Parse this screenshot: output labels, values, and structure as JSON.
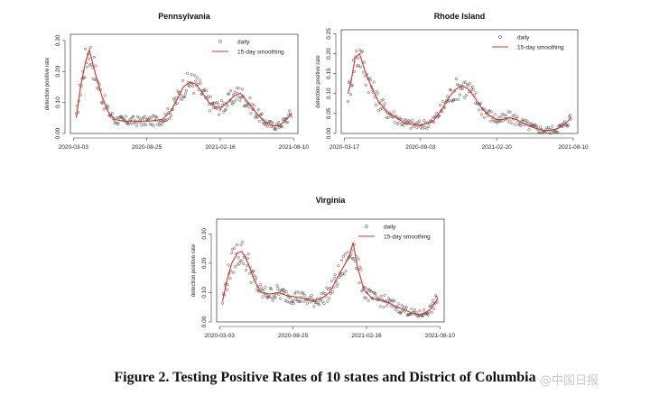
{
  "chart_data": [
    {
      "type": "scatter",
      "title": "Pennsylvania",
      "xlabel": "",
      "ylabel": "detection positive rate",
      "x_ticks": [
        "2020-03-03",
        "2020-08-25",
        "2021-02-16",
        "2021-08-10"
      ],
      "ylim": [
        0,
        0.32
      ],
      "y_ticks": [
        "0.00",
        "0.10",
        "0.20",
        "0.30"
      ],
      "y_tick_values": [
        0,
        0.1,
        0.2,
        0.3
      ],
      "legend": {
        "position": "top-right",
        "entries": [
          "daily",
          "15-day smoothing"
        ]
      },
      "series": [
        {
          "name": "daily",
          "style": "points",
          "color": "#000000"
        },
        {
          "name": "15-day smoothing",
          "style": "line",
          "color": "#e03020",
          "x": [
            "2020-03-10",
            "2020-03-20",
            "2020-04-01",
            "2020-04-10",
            "2020-04-25",
            "2020-05-10",
            "2020-05-25",
            "2020-06-10",
            "2020-07-01",
            "2020-08-01",
            "2020-09-01",
            "2020-10-01",
            "2020-10-20",
            "2020-11-05",
            "2020-11-20",
            "2020-12-05",
            "2020-12-20",
            "2021-01-05",
            "2021-01-20",
            "2021-02-05",
            "2021-02-20",
            "2021-03-05",
            "2021-03-20",
            "2021-04-05",
            "2021-04-20",
            "2021-05-05",
            "2021-05-20",
            "2021-06-05",
            "2021-06-20",
            "2021-07-05",
            "2021-07-20",
            "2021-08-05"
          ],
          "y": [
            0.05,
            0.15,
            0.23,
            0.27,
            0.19,
            0.12,
            0.07,
            0.045,
            0.04,
            0.04,
            0.04,
            0.045,
            0.07,
            0.11,
            0.15,
            0.165,
            0.16,
            0.13,
            0.1,
            0.085,
            0.085,
            0.1,
            0.12,
            0.13,
            0.105,
            0.08,
            0.055,
            0.035,
            0.025,
            0.025,
            0.04,
            0.065
          ]
        }
      ]
    },
    {
      "type": "scatter",
      "title": "Rhode Island",
      "xlabel": "",
      "ylabel": "detection positive rate",
      "x_ticks": [
        "2020-03-17",
        "2020-09-03",
        "2021-02-20",
        "2021-08-10"
      ],
      "ylim": [
        0,
        0.26
      ],
      "y_ticks": [
        "0.00",
        "0.05",
        "0.10",
        "0.15",
        "0.20",
        "0.25"
      ],
      "y_tick_values": [
        0,
        0.05,
        0.1,
        0.15,
        0.2,
        0.25
      ],
      "legend": {
        "position": "top-right",
        "entries": [
          "daily",
          "15-day smoothing"
        ]
      },
      "series": [
        {
          "name": "daily",
          "style": "points",
          "color": "#000000"
        },
        {
          "name": "15-day smoothing",
          "style": "line",
          "color": "#e03020",
          "x": [
            "2020-03-25",
            "2020-04-01",
            "2020-04-10",
            "2020-04-20",
            "2020-05-01",
            "2020-05-15",
            "2020-06-01",
            "2020-06-20",
            "2020-07-10",
            "2020-08-01",
            "2020-09-01",
            "2020-10-01",
            "2020-10-20",
            "2020-11-05",
            "2020-11-20",
            "2020-12-05",
            "2020-12-20",
            "2021-01-05",
            "2021-01-20",
            "2021-02-05",
            "2021-02-20",
            "2021-03-05",
            "2021-03-20",
            "2021-04-05",
            "2021-04-20",
            "2021-05-05",
            "2021-05-20",
            "2021-06-05",
            "2021-06-20",
            "2021-07-05",
            "2021-07-20",
            "2021-08-05"
          ],
          "y": [
            0.1,
            0.13,
            0.19,
            0.2,
            0.16,
            0.12,
            0.08,
            0.055,
            0.04,
            0.025,
            0.02,
            0.03,
            0.06,
            0.09,
            0.11,
            0.12,
            0.11,
            0.085,
            0.06,
            0.045,
            0.035,
            0.035,
            0.04,
            0.035,
            0.025,
            0.018,
            0.012,
            0.008,
            0.008,
            0.012,
            0.02,
            0.04
          ]
        }
      ]
    },
    {
      "type": "scatter",
      "title": "Virginia",
      "xlabel": "",
      "ylabel": "detection positive rate",
      "x_ticks": [
        "2020-03-03",
        "2020-08-25",
        "2021-02-16",
        "2021-08-10"
      ],
      "ylim": [
        0,
        0.35
      ],
      "y_ticks": [
        "0.00",
        "0.10",
        "0.20",
        "0.30"
      ],
      "y_tick_values": [
        0,
        0.1,
        0.2,
        0.3
      ],
      "legend": {
        "position": "top-right",
        "entries": [
          "daily",
          "15-day smoothing"
        ]
      },
      "series": [
        {
          "name": "daily",
          "style": "points",
          "color": "#000000"
        },
        {
          "name": "15-day smoothing",
          "style": "line",
          "color": "#e03020",
          "x": [
            "2020-03-10",
            "2020-03-20",
            "2020-04-01",
            "2020-04-15",
            "2020-04-25",
            "2020-05-10",
            "2020-05-25",
            "2020-06-10",
            "2020-07-01",
            "2020-07-20",
            "2020-08-10",
            "2020-09-01",
            "2020-09-20",
            "2020-10-10",
            "2020-11-01",
            "2020-11-20",
            "2020-12-05",
            "2020-12-20",
            "2021-01-05",
            "2021-01-15",
            "2021-01-25",
            "2021-02-10",
            "2021-03-01",
            "2021-03-20",
            "2021-04-10",
            "2021-05-01",
            "2021-05-20",
            "2021-06-05",
            "2021-06-20",
            "2021-07-05",
            "2021-07-20",
            "2021-08-05"
          ],
          "y": [
            0.07,
            0.14,
            0.2,
            0.235,
            0.24,
            0.2,
            0.14,
            0.1,
            0.095,
            0.1,
            0.09,
            0.085,
            0.08,
            0.07,
            0.08,
            0.1,
            0.14,
            0.18,
            0.22,
            0.27,
            0.19,
            0.11,
            0.08,
            0.075,
            0.065,
            0.05,
            0.04,
            0.03,
            0.025,
            0.03,
            0.045,
            0.08
          ]
        }
      ]
    }
  ],
  "caption": "Figure 2. Testing Positive Rates of 10 states and District of Columbia",
  "watermark": "@中国日报"
}
